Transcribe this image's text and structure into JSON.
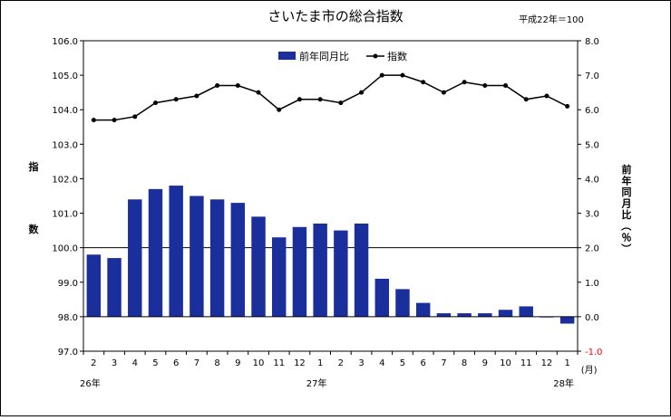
{
  "chart_data": {
    "type": "bar+line",
    "title": "さいたま市の総合指数",
    "base_note": "平成22年＝100",
    "x_month_labels": [
      "2",
      "3",
      "4",
      "5",
      "6",
      "7",
      "8",
      "9",
      "10",
      "11",
      "12",
      "1",
      "2",
      "3",
      "4",
      "5",
      "6",
      "7",
      "8",
      "9",
      "10",
      "11",
      "12",
      "1"
    ],
    "x_unit_label": "(月)",
    "year_labels": [
      {
        "text": "26年",
        "at_index": 0
      },
      {
        "text": "27年",
        "at_index": 11
      },
      {
        "text": "28年",
        "at_index": 23
      }
    ],
    "left_axis": {
      "label_chars": [
        "指",
        "数"
      ],
      "min": 97.0,
      "max": 106.0,
      "step": 1.0,
      "ticks": [
        "97.0",
        "98.0",
        "99.0",
        "100.0",
        "101.0",
        "102.0",
        "103.0",
        "104.0",
        "105.0",
        "106.0"
      ]
    },
    "right_axis": {
      "label_chars": [
        "前",
        "年",
        "同",
        "月",
        "比",
        "（",
        "％",
        "）"
      ],
      "min": -1.0,
      "max": 8.0,
      "step": 1.0,
      "ticks": [
        "-1.0",
        "0.0",
        "1.0",
        "2.0",
        "3.0",
        "4.0",
        "5.0",
        "6.0",
        "7.0",
        "8.0"
      ]
    },
    "series": [
      {
        "name": "前年同月比",
        "type": "bar",
        "axis": "right",
        "color": "#1a2e9c",
        "values": [
          1.8,
          1.7,
          3.4,
          3.7,
          3.8,
          3.5,
          3.4,
          3.3,
          2.9,
          2.3,
          2.6,
          2.7,
          2.5,
          2.7,
          1.1,
          0.8,
          0.4,
          0.1,
          0.1,
          0.1,
          0.2,
          0.3,
          0.0,
          -0.2
        ]
      },
      {
        "name": "指数",
        "type": "line",
        "axis": "left",
        "color": "#000000",
        "values": [
          103.7,
          103.7,
          103.8,
          104.2,
          104.3,
          104.4,
          104.7,
          104.7,
          104.5,
          104.0,
          104.3,
          104.3,
          104.2,
          104.5,
          105.0,
          105.0,
          104.8,
          104.5,
          104.8,
          104.7,
          104.7,
          104.3,
          104.4,
          104.1
        ]
      }
    ],
    "reference_line_right_value": 2.0,
    "legend_position": "top-center"
  }
}
